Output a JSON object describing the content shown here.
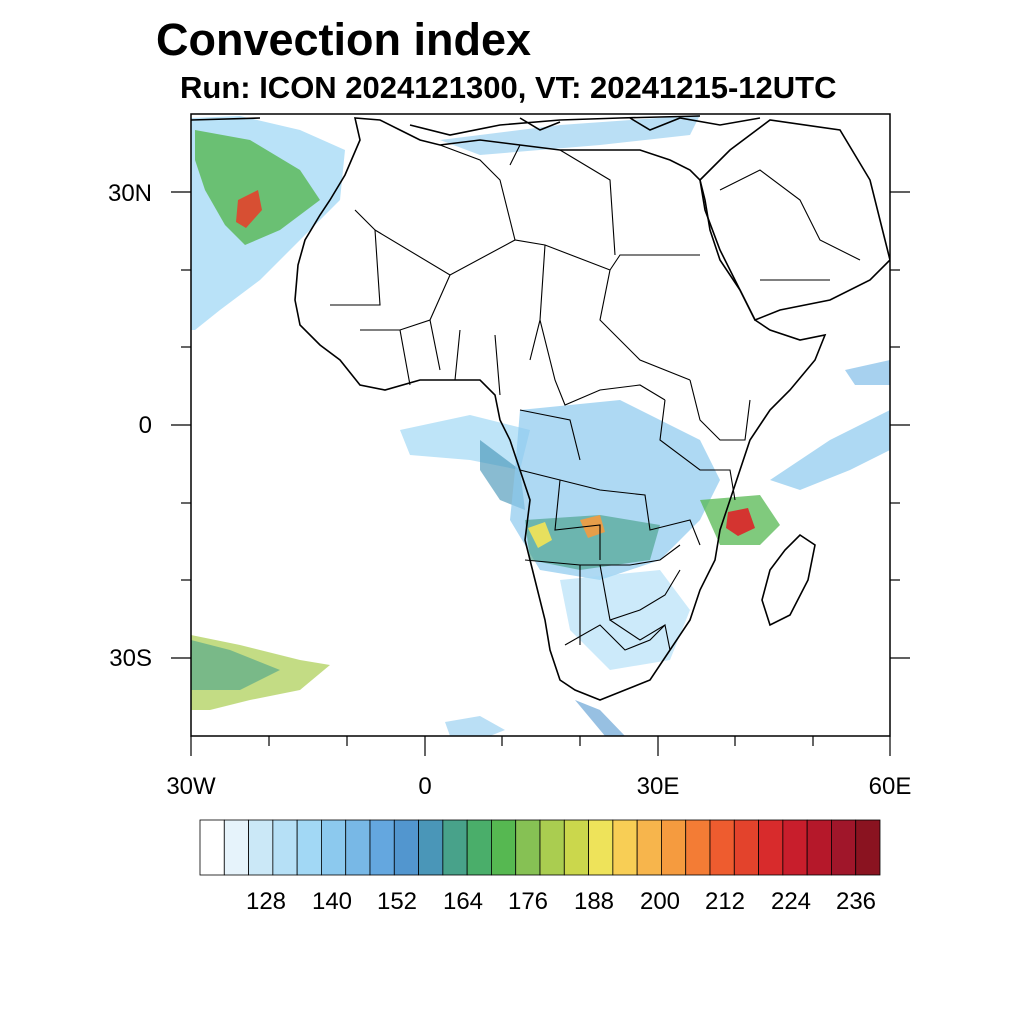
{
  "title": "Convection index",
  "subtitle": "Run: ICON 2024121300,  VT: 20241215-12UTC",
  "map": {
    "lat_labels": [
      "30N",
      "0",
      "30S"
    ],
    "lon_labels": [
      "30W",
      "0",
      "30E",
      "60E"
    ],
    "lon_range": [
      -30,
      60
    ],
    "lat_range": [
      -40,
      40
    ]
  },
  "colorbar": {
    "labels": [
      "128",
      "140",
      "152",
      "164",
      "176",
      "188",
      "200",
      "212",
      "224",
      "236"
    ],
    "colors": [
      "#ffffff",
      "#e6f3fb",
      "#cbe8f7",
      "#b6e0f6",
      "#a2d8f5",
      "#8cc9ee",
      "#78b8e6",
      "#64a7df",
      "#5296cf",
      "#4a96b8",
      "#48a28a",
      "#4aae6a",
      "#56b851",
      "#86c154",
      "#aacd50",
      "#cbd74c",
      "#eee35a",
      "#f8ce55",
      "#f7b54c",
      "#f59b3f",
      "#f37c35",
      "#ee5c2f",
      "#e3432c",
      "#d82b2c",
      "#c81e2c",
      "#b5182a",
      "#a0162a",
      "#8a1320"
    ]
  }
}
